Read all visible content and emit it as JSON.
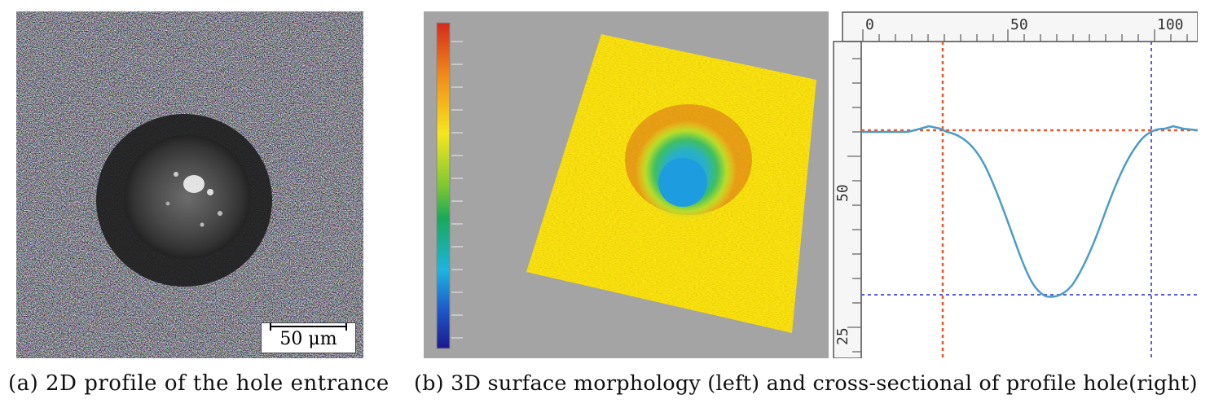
{
  "panel_a": {
    "scale_label": "50 μm",
    "caption": "(a) 2D profile of the hole entrance"
  },
  "panel_b": {
    "caption": "(b) 3D surface morphology (left) and cross-sectional of profile hole(right)",
    "profile": {
      "top_ruler_labels": [
        "0",
        "50",
        "100"
      ],
      "left_ruler_labels": [
        "50",
        "25"
      ],
      "profile_color": "#4b9cc8",
      "red_marker_color": "#e8572a",
      "blue_marker_color": "#5a5ed6"
    },
    "colorbar_colors": [
      "#d42a1c",
      "#f08a1a",
      "#f6e61e",
      "#7ec832",
      "#1aa85a",
      "#1eb4e0",
      "#1e5ac8",
      "#1a1a8c"
    ]
  }
}
